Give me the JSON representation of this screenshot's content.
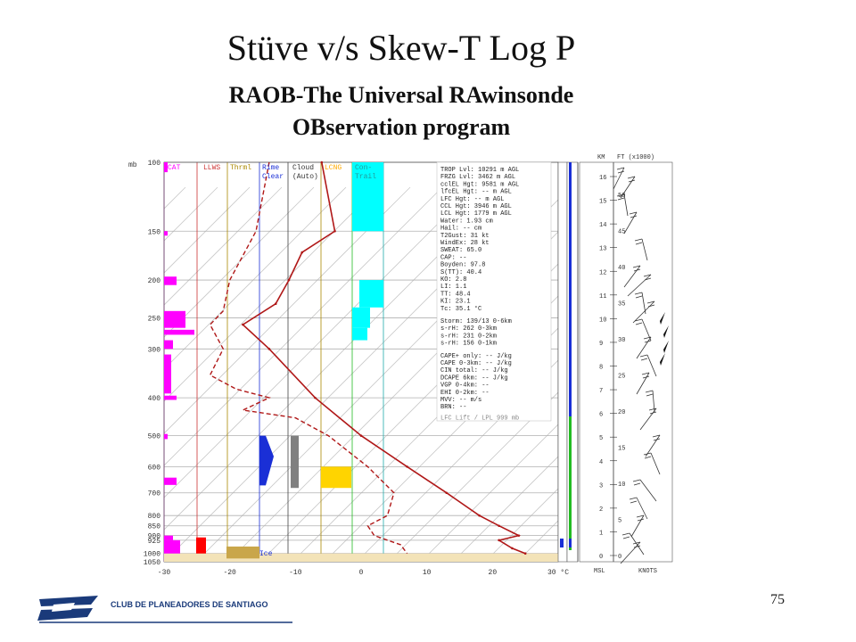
{
  "slide": {
    "title": "Stüve v/s Skew-T Log P",
    "subtitle_line1": "RAOB-The Universal RAwinsonde",
    "subtitle_line2": "OBservation program",
    "page_number": "75",
    "logo_text": "CLUB DE PLANEADORES DE SANTIAGO"
  },
  "colors": {
    "magenta": "#ff00ff",
    "cyan": "#00ffff",
    "temp": "#b01818",
    "blue": "#1a2fd6",
    "gray": "#808080",
    "yellow": "#ffd400",
    "green": "#22bb22",
    "tan": "#c9a64a",
    "red": "#ff0000",
    "navy": "#1a3a7a"
  },
  "skewt": {
    "pressure_unit": "mb",
    "pressure_labels": [
      "100",
      "150",
      "200",
      "250",
      "300",
      "400",
      "500",
      "600",
      "700",
      "800",
      "850",
      "900",
      "925",
      "1000",
      "1050"
    ],
    "temp_labels": [
      "-30",
      "-20",
      "-10",
      "0",
      "10",
      "20",
      "30 °C"
    ],
    "column_headers": [
      {
        "label": "CAT",
        "color": "#ff00ff"
      },
      {
        "label": "LLWS",
        "color": "#cc3333"
      },
      {
        "label": "Thrml",
        "color": "#aa8800"
      },
      {
        "label": "Rime",
        "color": "#1a2fd6"
      },
      {
        "label": "Clear",
        "color": "#1a2fd6"
      },
      {
        "label": "Cloud",
        "color": "#333333"
      },
      {
        "label": "(Auto)",
        "color": "#333333"
      },
      {
        "label": "LCNG",
        "color": "#ffaa00"
      },
      {
        "label": "Con-",
        "color": "#229999"
      },
      {
        "label": "Trail",
        "color": "#229999"
      }
    ],
    "ice_label": "Ice",
    "indices": [
      "TROP Lvl: 10291 m AGL",
      "FRZG Lvl:  3462 m AGL",
      "cclEL Hgt:  9581 m AGL",
      "lfcEL Hgt:    -- m AGL",
      "LFC Hgt:    -- m AGL",
      "CCL Hgt:  3946 m AGL",
      "LCL Hgt:  1779 m AGL",
      "Water:  1.93 cm",
      "Hail:    -- cm",
      "T2Gust:    31 kt",
      "WindEx:    28 kt",
      "SWEAT:  65.0",
      "CAP:    --",
      "Boyden:  97.8",
      "S(TT):  40.4",
      "KO:   2.8",
      "LI:   1.1",
      "TT:  48.4",
      "KI:  23.1",
      "Tc:  35.1 °C",
      "Storm: 139/13 0-6km",
      "s-rH:  262  0-3km",
      "s-rH:  231  0-2km",
      "s-rH:  156  0-1km",
      "CAPE+ only:  -- J/kg",
      "CAPE 0-3km:  -- J/kg",
      "CIN total:  -- J/kg",
      "DCAPE 6km:  -- J/kg",
      "VGP 0-4km:  --",
      "EHI 0-2km:  --",
      "MVV:  -- m/s",
      "BRN:  --",
      "LFC Lift / LPL 999 mb"
    ],
    "height_axis": {
      "km_label": "KM",
      "ft_label": "FT (x1000)",
      "km_ticks": [
        "16",
        "15",
        "14",
        "13",
        "12",
        "11",
        "10",
        "9",
        "8",
        "7",
        "6",
        "5",
        "4",
        "3",
        "2",
        "1",
        "0"
      ],
      "ft_ticks": [
        "50",
        "45",
        "40",
        "35",
        "30",
        "25",
        "20",
        "15",
        "10",
        "5",
        "0"
      ],
      "msl_label": "MSL",
      "knots_label": "KNOTS"
    }
  }
}
